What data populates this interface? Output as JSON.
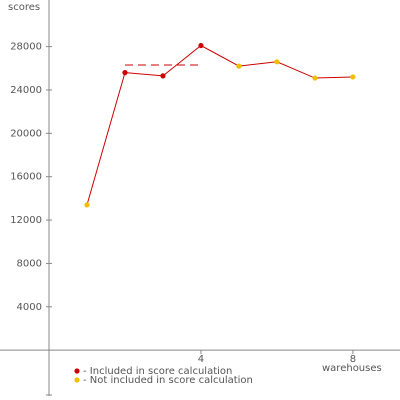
{
  "chart_data": {
    "type": "line",
    "y_label": "scores",
    "x_label": "warehouses",
    "x": [
      1,
      2,
      3,
      4,
      5,
      6,
      7,
      8
    ],
    "values": [
      13400,
      25600,
      25300,
      28100,
      26200,
      26600,
      25100,
      25200
    ],
    "included": [
      false,
      true,
      true,
      true,
      false,
      false,
      false,
      false
    ],
    "line_color": "#cc0000",
    "legend": [
      {
        "label": "- Included in score calculation",
        "color": "#cc0000"
      },
      {
        "label": "- Not included in score calculation",
        "color": "#f0c000"
      }
    ],
    "score_line": {
      "value": 26300,
      "x": [
        2,
        4
      ],
      "color": "#cc0000"
    },
    "xlim": [
      -1.29,
      9.24
    ],
    "ylim": [
      -4600,
      32300
    ],
    "xticks": [
      4,
      8
    ],
    "yticks": [
      4000,
      8000,
      12000,
      16000,
      20000,
      24000,
      28000
    ]
  }
}
